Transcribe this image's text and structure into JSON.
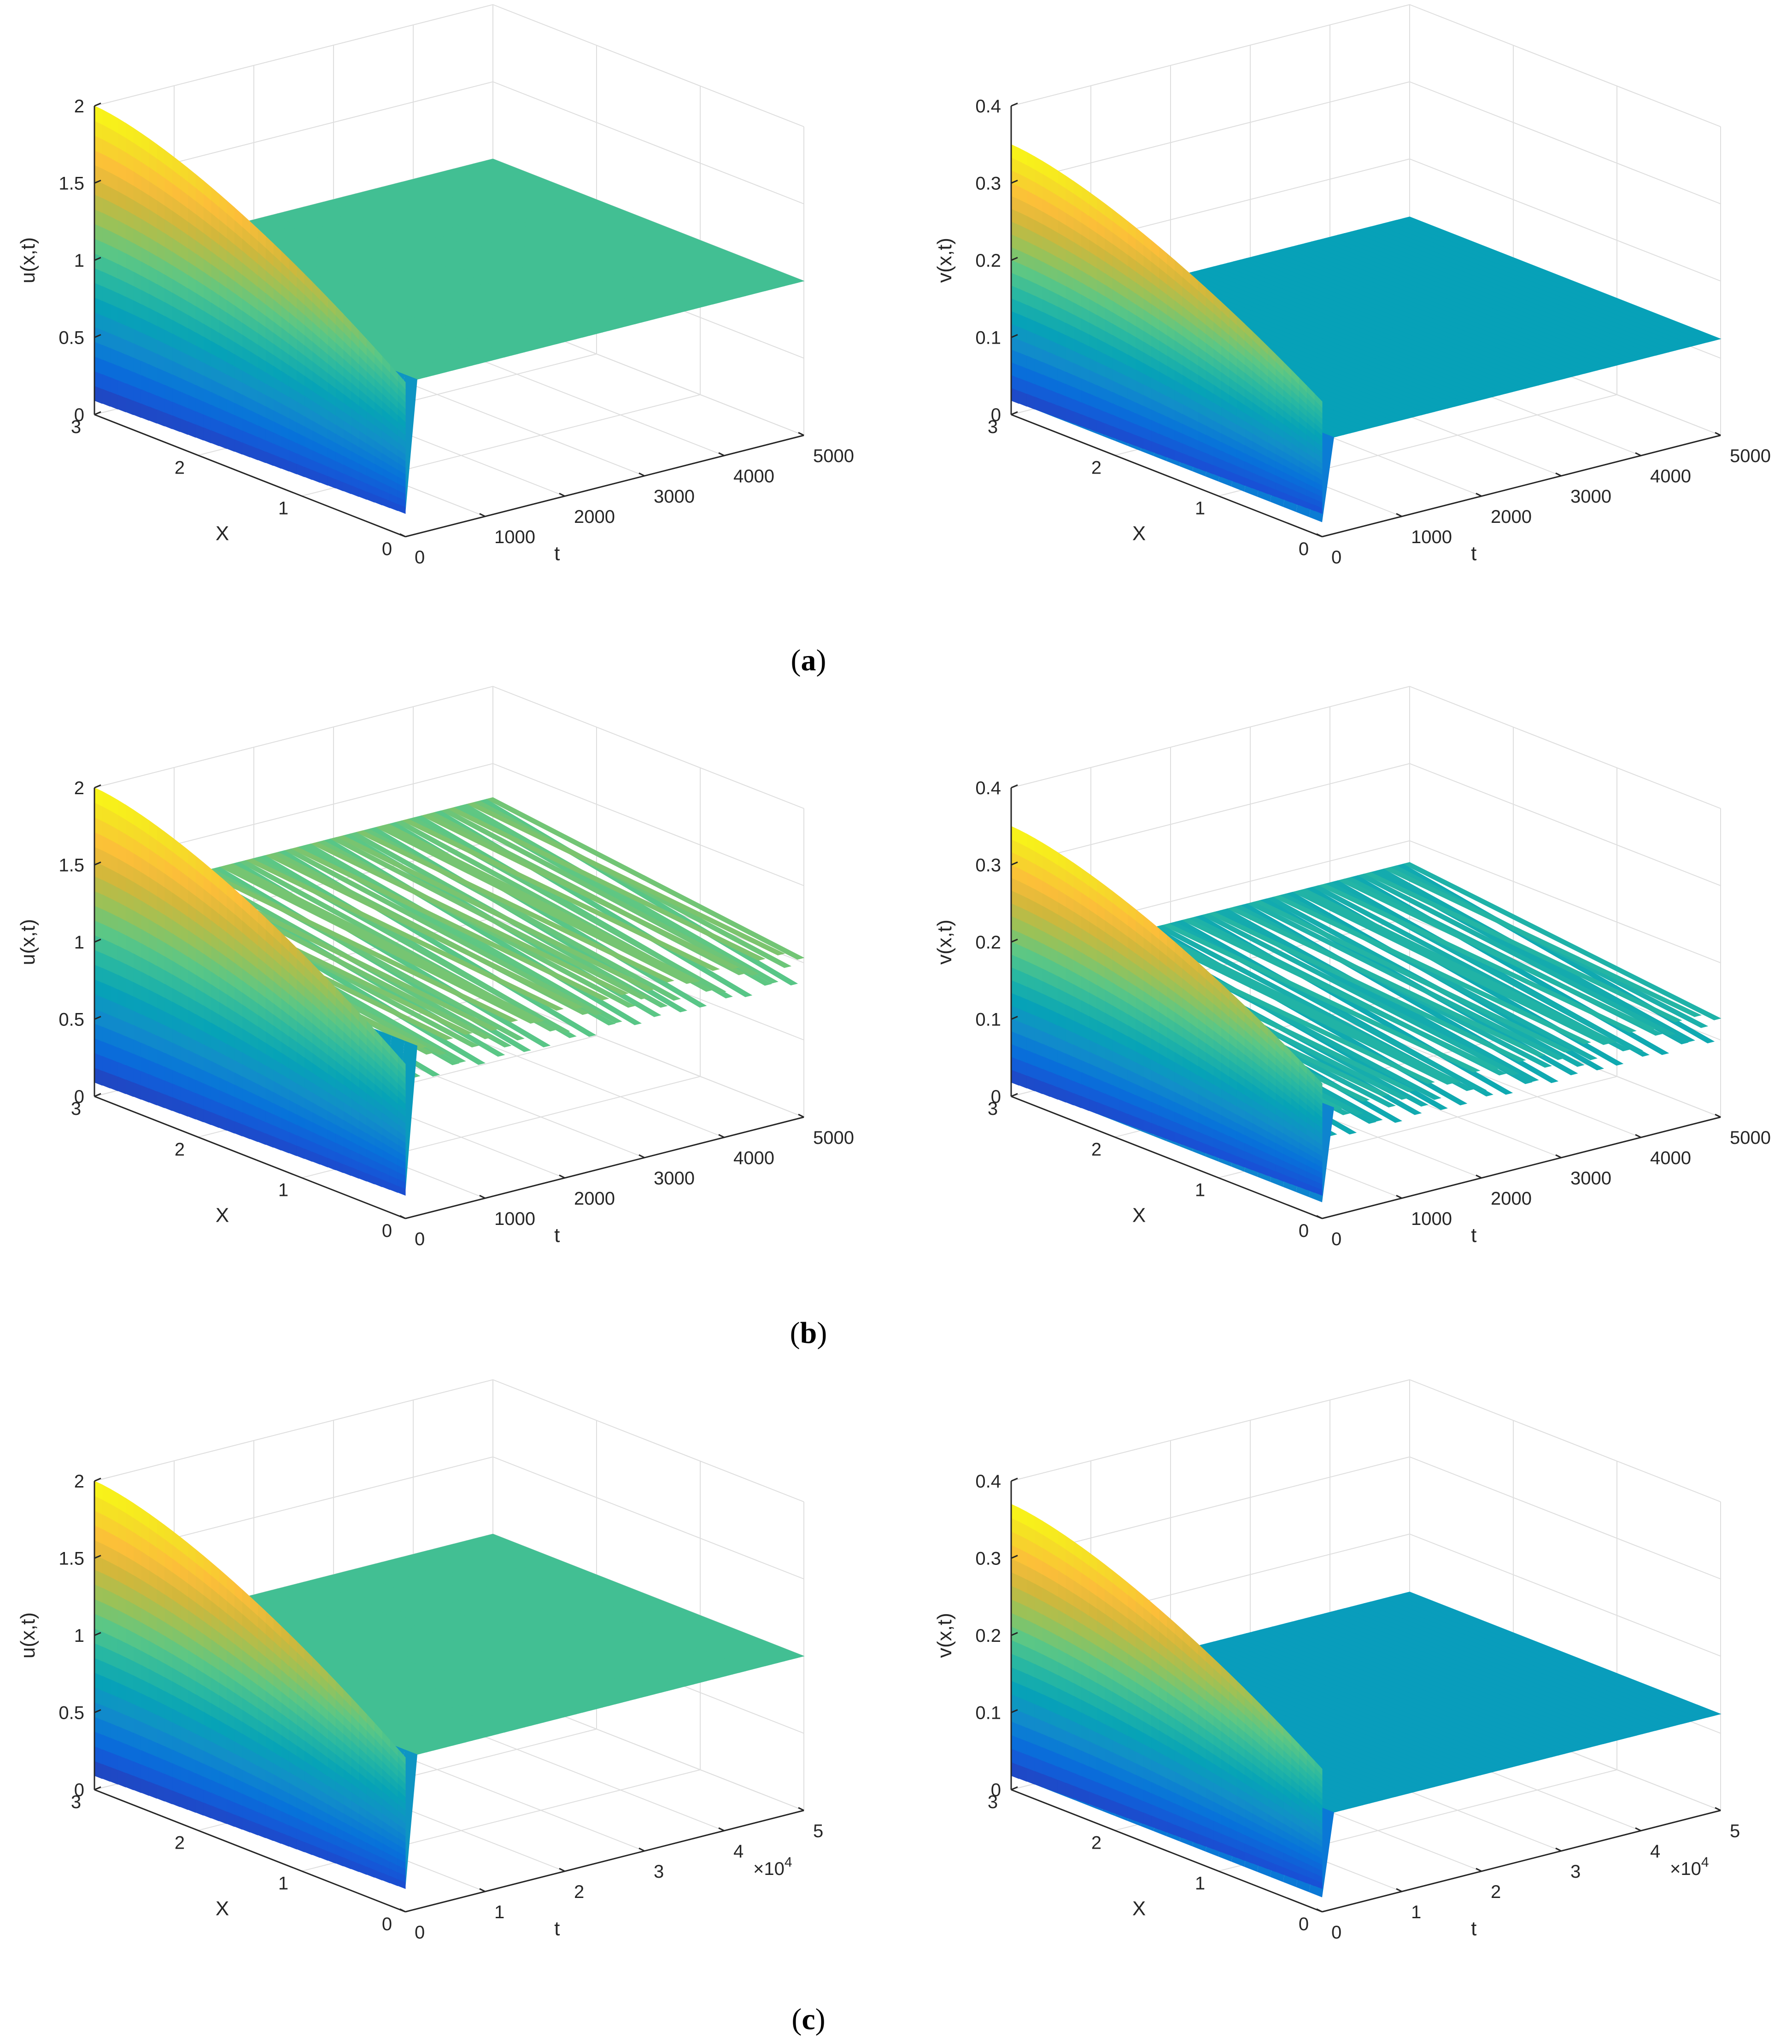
{
  "captions": [
    "(a)",
    "(b)",
    "(c)"
  ],
  "colors": {
    "grid": "#dedede",
    "axis": "#262626",
    "colormap": "parula"
  },
  "chart_data": [
    {
      "type": "surface",
      "panel": "a-left",
      "row": 0,
      "col": 0,
      "caption": "(a)",
      "zlabel": "u(x,t)",
      "xlabel": "X",
      "ylabel": "t",
      "exponent": "",
      "zlim": [
        0,
        2
      ],
      "zticks": [
        "0",
        "0.5",
        "1",
        "1.5",
        "2"
      ],
      "xlim": [
        0,
        3
      ],
      "xticks": [
        "0",
        "1",
        "2",
        "3"
      ],
      "tlim": [
        0,
        5000
      ],
      "tticks": [
        "0",
        "1000",
        "2000",
        "3000",
        "4000",
        "5000"
      ],
      "initial_max": 2.0,
      "initial_min": 0.15,
      "steady_value": 1.0,
      "oscillation_amplitude": 0.0,
      "color_limits": [
        0,
        2
      ]
    },
    {
      "type": "surface",
      "panel": "a-right",
      "row": 0,
      "col": 1,
      "caption": "(a)",
      "zlabel": "v(x,t)",
      "xlabel": "X",
      "ylabel": "t",
      "exponent": "",
      "zlim": [
        0,
        0.4
      ],
      "zticks": [
        "0",
        "0.1",
        "0.2",
        "0.3",
        "0.4"
      ],
      "xlim": [
        0,
        3
      ],
      "xticks": [
        "0",
        "1",
        "2",
        "3"
      ],
      "tlim": [
        0,
        5000
      ],
      "tticks": [
        "0",
        "1000",
        "2000",
        "3000",
        "4000",
        "5000"
      ],
      "initial_max": 0.35,
      "initial_min": 0.03,
      "steady_value": 0.125,
      "oscillation_amplitude": 0.0,
      "color_limits": [
        0,
        0.35
      ]
    },
    {
      "type": "surface",
      "panel": "b-left",
      "row": 1,
      "col": 0,
      "caption": "(b)",
      "zlabel": "u(x,t)",
      "xlabel": "X",
      "ylabel": "t",
      "exponent": "",
      "zlim": [
        0,
        2
      ],
      "zticks": [
        "0",
        "0.5",
        "1",
        "1.5",
        "2"
      ],
      "xlim": [
        0,
        3
      ],
      "xticks": [
        "0",
        "1",
        "2",
        "3"
      ],
      "tlim": [
        0,
        5000
      ],
      "tticks": [
        "0",
        "1000",
        "2000",
        "3000",
        "4000",
        "5000"
      ],
      "initial_max": 2.0,
      "initial_min": 0.15,
      "steady_value": 1.1,
      "oscillation_amplitude": 0.45,
      "oscillation_period": 280,
      "color_limits": [
        0,
        2
      ]
    },
    {
      "type": "surface",
      "panel": "b-right",
      "row": 1,
      "col": 1,
      "caption": "(b)",
      "zlabel": "v(x,t)",
      "xlabel": "X",
      "ylabel": "t",
      "exponent": "",
      "zlim": [
        0,
        0.4
      ],
      "zticks": [
        "0",
        "0.1",
        "0.2",
        "0.3",
        "0.4"
      ],
      "xlim": [
        0,
        3
      ],
      "xticks": [
        "0",
        "1",
        "2",
        "3"
      ],
      "tlim": [
        0,
        5000
      ],
      "tticks": [
        "0",
        "1000",
        "2000",
        "3000",
        "4000",
        "5000"
      ],
      "initial_max": 0.35,
      "initial_min": 0.03,
      "steady_value": 0.14,
      "oscillation_amplitude": 0.08,
      "oscillation_period": 280,
      "color_limits": [
        0,
        0.35
      ]
    },
    {
      "type": "surface",
      "panel": "c-left",
      "row": 2,
      "col": 0,
      "caption": "(c)",
      "zlabel": "u(x,t)",
      "xlabel": "X",
      "ylabel": "t",
      "exponent": "×10",
      "zlim": [
        0,
        2
      ],
      "zticks": [
        "0",
        "0.5",
        "1",
        "1.5",
        "2"
      ],
      "xlim": [
        0,
        3
      ],
      "xticks": [
        "0",
        "1",
        "2",
        "3"
      ],
      "tlim": [
        0,
        50000
      ],
      "tticks": [
        "0",
        "1",
        "2",
        "3",
        "4",
        "5"
      ],
      "initial_max": 2.0,
      "initial_min": 0.15,
      "steady_value": 1.0,
      "oscillation_amplitude": 0.0,
      "color_limits": [
        0,
        2
      ]
    },
    {
      "type": "surface",
      "panel": "c-right",
      "row": 2,
      "col": 1,
      "caption": "(c)",
      "zlabel": "v(x,t)",
      "xlabel": "X",
      "ylabel": "t",
      "exponent": "×10",
      "zlim": [
        0,
        0.4
      ],
      "zticks": [
        "0",
        "0.1",
        "0.2",
        "0.3",
        "0.4"
      ],
      "xlim": [
        0,
        3
      ],
      "xticks": [
        "0",
        "1",
        "2",
        "3"
      ],
      "tlim": [
        0,
        50000
      ],
      "tticks": [
        "0",
        "1",
        "2",
        "3",
        "4",
        "5"
      ],
      "initial_max": 0.37,
      "initial_min": 0.03,
      "steady_value": 0.125,
      "oscillation_amplitude": 0.0,
      "color_limits": [
        0,
        0.37
      ]
    }
  ]
}
